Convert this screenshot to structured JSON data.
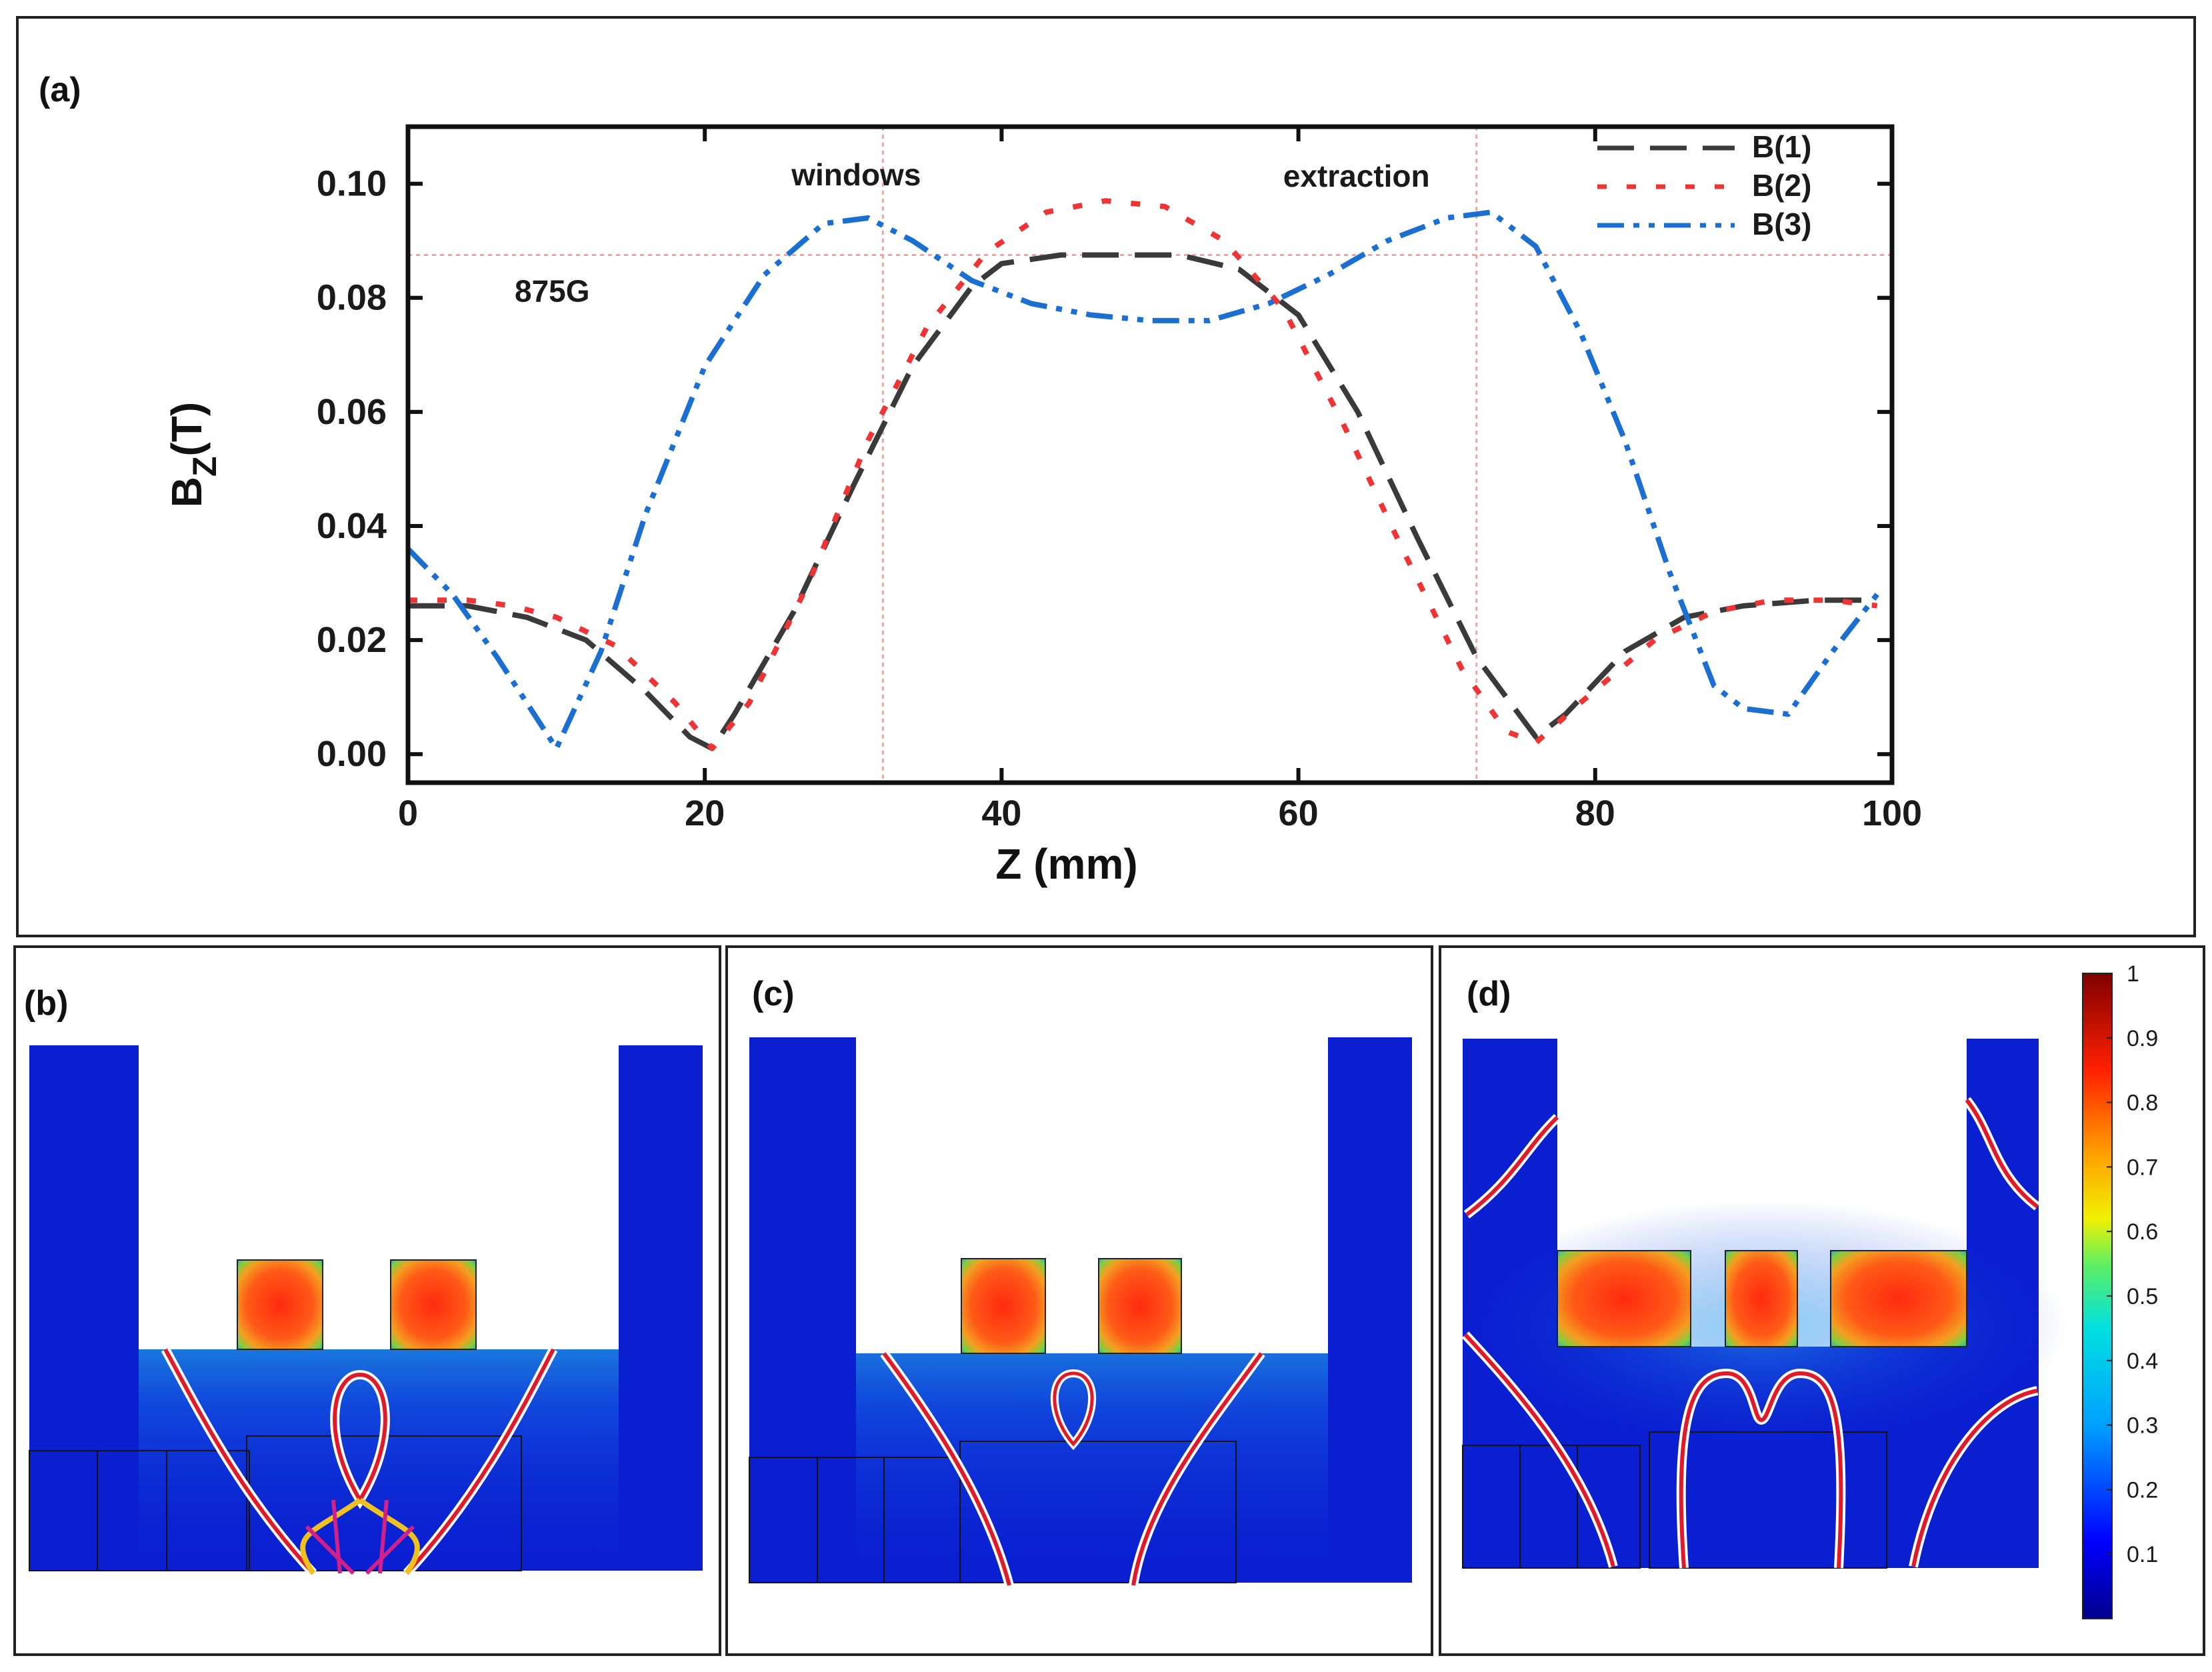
{
  "panels": {
    "a": "(a)",
    "b": "(b)",
    "c": "(c)",
    "d": "(d)"
  },
  "chart_data": {
    "type": "line",
    "xlabel": "Z (mm)",
    "ylabel_main": "B",
    "ylabel_sub": "Z",
    "ylabel_unit": "(T)",
    "xlim": [
      0,
      100
    ],
    "ylim": [
      -0.005,
      0.11
    ],
    "xticks": [
      0,
      20,
      40,
      60,
      80,
      100
    ],
    "xtick_labels": [
      "0",
      "20",
      "40",
      "60",
      "80",
      "100"
    ],
    "yticks": [
      0.0,
      0.02,
      0.04,
      0.06,
      0.08,
      0.1
    ],
    "ytick_labels": [
      "0.00",
      "0.02",
      "0.04",
      "0.06",
      "0.08",
      "0.10"
    ],
    "annotations": {
      "windows": {
        "text": "windows",
        "x": 32
      },
      "extraction": {
        "text": "extraction",
        "x": 72
      },
      "resonance": {
        "text": "875G",
        "y": 0.0875
      }
    },
    "series": [
      {
        "name": "B(1)",
        "color": "#3a3a3a",
        "dash": "55,24",
        "x": [
          0,
          4,
          8,
          12,
          16,
          19,
          20.5,
          22,
          26,
          30,
          34,
          38,
          40,
          44,
          48,
          52,
          56,
          60,
          64,
          68,
          72,
          76,
          78,
          82,
          86,
          90,
          95,
          99
        ],
        "y": [
          0.026,
          0.026,
          0.024,
          0.02,
          0.011,
          0.003,
          0.001,
          0.007,
          0.025,
          0.047,
          0.068,
          0.082,
          0.086,
          0.0875,
          0.0875,
          0.0875,
          0.085,
          0.077,
          0.06,
          0.038,
          0.017,
          0.003,
          0.007,
          0.018,
          0.024,
          0.026,
          0.027,
          0.027
        ]
      },
      {
        "name": "B(2)",
        "color": "#ee3434",
        "dash": "14,30",
        "x": [
          0,
          4,
          7,
          10,
          14,
          18,
          20.5,
          23,
          27,
          31,
          35,
          39,
          43,
          47,
          51,
          55,
          59,
          63,
          67,
          71,
          74,
          76,
          79,
          84,
          88,
          92,
          96,
          99
        ],
        "y": [
          0.027,
          0.027,
          0.026,
          0.024,
          0.019,
          0.009,
          0.001,
          0.009,
          0.03,
          0.055,
          0.075,
          0.088,
          0.095,
          0.097,
          0.096,
          0.09,
          0.078,
          0.058,
          0.036,
          0.015,
          0.004,
          0.002,
          0.009,
          0.02,
          0.025,
          0.027,
          0.027,
          0.026
        ]
      },
      {
        "name": "B(3)",
        "color": "#1a6fd0",
        "dash": "40,14,9,14,9,14",
        "x": [
          0,
          3,
          6,
          10,
          13,
          16,
          20,
          24,
          28,
          31,
          34,
          38,
          42,
          46,
          50,
          54,
          58,
          62,
          66,
          70,
          73,
          76,
          79,
          82,
          85,
          88,
          90,
          93,
          96,
          99
        ],
        "y": [
          0.036,
          0.028,
          0.017,
          0.001,
          0.018,
          0.042,
          0.068,
          0.084,
          0.093,
          0.094,
          0.09,
          0.083,
          0.079,
          0.077,
          0.076,
          0.076,
          0.079,
          0.084,
          0.09,
          0.094,
          0.095,
          0.089,
          0.074,
          0.055,
          0.032,
          0.012,
          0.008,
          0.007,
          0.018,
          0.028
        ]
      }
    ],
    "colorbar": {
      "ticks": [
        1,
        0.9,
        0.8,
        0.7,
        0.6,
        0.5,
        0.4,
        0.3,
        0.2,
        0.1
      ],
      "labels": [
        "1",
        "0.9",
        "0.8",
        "0.7",
        "0.6",
        "0.5",
        "0.4",
        "0.3",
        "0.2",
        "0.1"
      ],
      "range": [
        0,
        1
      ]
    }
  }
}
